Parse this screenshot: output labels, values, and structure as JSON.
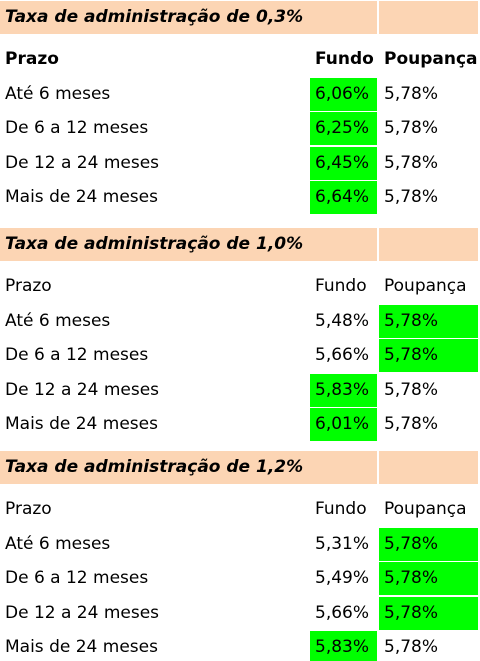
{
  "sections": [
    {
      "title": "Taxa de administração de 0,3%",
      "header": [
        "Prazo",
        "Fundo",
        "Poupança"
      ],
      "header_bold": true,
      "rows": [
        {
          "cells": [
            "Até 6 meses",
            "6,06%",
            "5,78%"
          ],
          "highlight": [
            false,
            true,
            false
          ]
        },
        {
          "cells": [
            "De 6 a 12 meses",
            "6,25%",
            "5,78%"
          ],
          "highlight": [
            false,
            true,
            false
          ]
        },
        {
          "cells": [
            "De 12 a 24 meses",
            "6,45%",
            "5,78%"
          ],
          "highlight": [
            false,
            true,
            false
          ]
        },
        {
          "cells": [
            "Mais de 24 meses",
            "6,64%",
            "5,78%"
          ],
          "highlight": [
            false,
            true,
            false
          ]
        }
      ]
    },
    {
      "title": "Taxa de administração de 1,0%",
      "header": [
        "Prazo",
        "Fundo",
        "Poupança"
      ],
      "header_bold": false,
      "rows": [
        {
          "cells": [
            "Até 6 meses",
            "5,48%",
            "5,78%"
          ],
          "highlight": [
            false,
            false,
            true
          ]
        },
        {
          "cells": [
            "De 6 a 12 meses",
            "5,66%",
            "5,78%"
          ],
          "highlight": [
            false,
            false,
            true
          ]
        },
        {
          "cells": [
            "De 12 a 24 meses",
            "5,83%",
            "5,78%"
          ],
          "highlight": [
            false,
            true,
            false
          ]
        },
        {
          "cells": [
            "Mais de 24 meses",
            "6,01%",
            "5,78%"
          ],
          "highlight": [
            false,
            true,
            false
          ]
        }
      ]
    },
    {
      "title": "Taxa de administração de 1,2%",
      "header": [
        "Prazo",
        "Fundo",
        "Poupança"
      ],
      "header_bold": false,
      "rows": [
        {
          "cells": [
            "Até 6 meses",
            "5,31%",
            "5,78%"
          ],
          "highlight": [
            false,
            false,
            true
          ]
        },
        {
          "cells": [
            "De 6 a 12 meses",
            "5,49%",
            "5,78%"
          ],
          "highlight": [
            false,
            false,
            true
          ]
        },
        {
          "cells": [
            "De 12 a 24 meses",
            "5,66%",
            "5,78%"
          ],
          "highlight": [
            false,
            false,
            true
          ]
        },
        {
          "cells": [
            "Mais de 24 meses",
            "5,83%",
            "5,78%"
          ],
          "highlight": [
            false,
            true,
            false
          ]
        }
      ]
    }
  ],
  "highlight_color": "#00ff00",
  "title_color": "#fcd5b4"
}
